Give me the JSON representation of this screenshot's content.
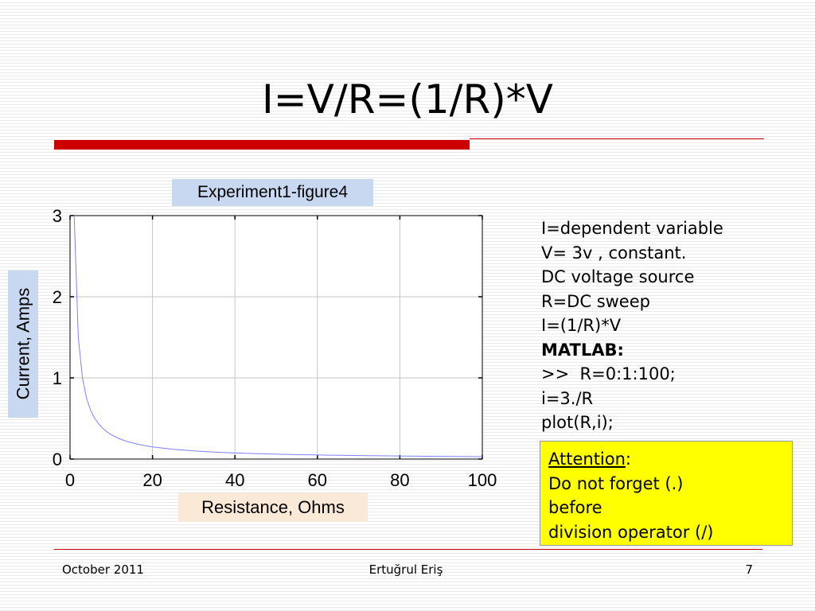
{
  "slide": {
    "title": "I=V/R=(1/R)*V",
    "footer_left": "October 2011",
    "footer_center": "Ertuğrul Eriş",
    "footer_right": "7"
  },
  "colors": {
    "accent_red": "#cc0000",
    "title_box_bg": "#c7d8f0",
    "xlabel_box_bg": "#fbe9d8",
    "ylabel_box_bg": "#c7d8f0",
    "attention_bg": "#ffff00",
    "curve": "#8080ff",
    "grid": "#c4c4c4"
  },
  "notes": {
    "lines": [
      "I=dependent variable",
      "V= 3v , constant.",
      "DC voltage source",
      "R=DC sweep",
      "I=(1/R)*V",
      "MATLAB:",
      ">>  R=0:1:100;",
      "i=3./R",
      "plot(R,i);"
    ],
    "bold_line_index": 5
  },
  "attention": {
    "word": "Attention",
    "colon": ":",
    "line2": "Do not forget (.)",
    "line3": "before",
    "line4": "division operator (/)"
  },
  "chart_data": {
    "type": "line",
    "title": "Experiment1-figure4",
    "xlabel": "Resistance, Ohms",
    "ylabel": "Current, Amps",
    "xlim": [
      0,
      100
    ],
    "ylim": [
      0,
      3
    ],
    "xticks": [
      0,
      20,
      40,
      60,
      80,
      100
    ],
    "yticks": [
      0,
      1,
      2,
      3
    ],
    "grid": true,
    "legend": "none",
    "formula": "i = 3 / R, R = 0:1:100",
    "series": [
      {
        "x": [
          1,
          2,
          3,
          4,
          5,
          6,
          7,
          8,
          9,
          10,
          12,
          14,
          16,
          18,
          20,
          25,
          30,
          35,
          40,
          50,
          60,
          70,
          80,
          90,
          100
        ],
        "values": [
          3.0,
          1.5,
          1.0,
          0.75,
          0.6,
          0.5,
          0.429,
          0.375,
          0.333,
          0.3,
          0.25,
          0.214,
          0.1875,
          0.167,
          0.15,
          0.12,
          0.1,
          0.0857,
          0.075,
          0.06,
          0.05,
          0.0429,
          0.0375,
          0.0333,
          0.03
        ]
      }
    ]
  }
}
